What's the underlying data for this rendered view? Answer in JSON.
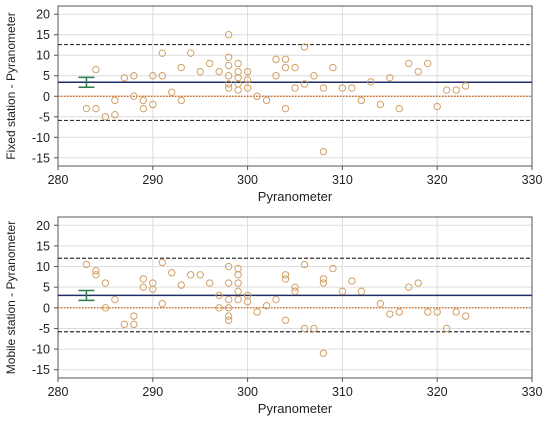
{
  "chart_data": [
    {
      "type": "scatter",
      "xlabel": "Pyranometer",
      "ylabel": "Fixed station - Pyranometer",
      "xlim": [
        280,
        330
      ],
      "ylim": [
        -17,
        22
      ],
      "x_ticks": [
        280,
        290,
        300,
        310,
        320,
        330
      ],
      "y_ticks": [
        -15,
        -10,
        -5,
        0,
        5,
        10,
        15,
        20
      ],
      "grid": true,
      "points": [
        {
          "x": 283,
          "y": -3
        },
        {
          "x": 284,
          "y": -3
        },
        {
          "x": 284,
          "y": 6.5
        },
        {
          "x": 285,
          "y": -5
        },
        {
          "x": 286,
          "y": -4.5
        },
        {
          "x": 286,
          "y": -1
        },
        {
          "x": 287,
          "y": 4.5
        },
        {
          "x": 288,
          "y": 5
        },
        {
          "x": 288,
          "y": 0
        },
        {
          "x": 289,
          "y": -1
        },
        {
          "x": 289,
          "y": -3
        },
        {
          "x": 290,
          "y": -2
        },
        {
          "x": 290,
          "y": 5
        },
        {
          "x": 291,
          "y": 10.5
        },
        {
          "x": 291,
          "y": 5
        },
        {
          "x": 292,
          "y": 1
        },
        {
          "x": 293,
          "y": 7
        },
        {
          "x": 293,
          "y": -1
        },
        {
          "x": 294,
          "y": 10.5
        },
        {
          "x": 295,
          "y": 6
        },
        {
          "x": 296,
          "y": 8
        },
        {
          "x": 297,
          "y": 6
        },
        {
          "x": 298,
          "y": 15
        },
        {
          "x": 298,
          "y": 9.5
        },
        {
          "x": 298,
          "y": 7.5
        },
        {
          "x": 298,
          "y": 5
        },
        {
          "x": 298,
          "y": 3
        },
        {
          "x": 298,
          "y": 2
        },
        {
          "x": 299,
          "y": 8
        },
        {
          "x": 299,
          "y": 6
        },
        {
          "x": 299,
          "y": 4.5
        },
        {
          "x": 299,
          "y": 3
        },
        {
          "x": 299,
          "y": 1.5
        },
        {
          "x": 300,
          "y": 2
        },
        {
          "x": 300,
          "y": 4
        },
        {
          "x": 300,
          "y": 6
        },
        {
          "x": 301,
          "y": 0
        },
        {
          "x": 302,
          "y": -1
        },
        {
          "x": 303,
          "y": 9
        },
        {
          "x": 303,
          "y": 5
        },
        {
          "x": 304,
          "y": 9
        },
        {
          "x": 304,
          "y": 7
        },
        {
          "x": 304,
          "y": -3
        },
        {
          "x": 305,
          "y": 7
        },
        {
          "x": 305,
          "y": 2
        },
        {
          "x": 306,
          "y": 12
        },
        {
          "x": 306,
          "y": 3
        },
        {
          "x": 307,
          "y": 5
        },
        {
          "x": 308,
          "y": 2
        },
        {
          "x": 308,
          "y": -13.5
        },
        {
          "x": 309,
          "y": 7
        },
        {
          "x": 310,
          "y": 2
        },
        {
          "x": 311,
          "y": 2
        },
        {
          "x": 312,
          "y": -1
        },
        {
          "x": 313,
          "y": 3.5
        },
        {
          "x": 314,
          "y": -2
        },
        {
          "x": 315,
          "y": 4.5
        },
        {
          "x": 316,
          "y": -3
        },
        {
          "x": 317,
          "y": 8
        },
        {
          "x": 318,
          "y": 6
        },
        {
          "x": 319,
          "y": 8
        },
        {
          "x": 320,
          "y": -2.5
        },
        {
          "x": 321,
          "y": 1.5
        },
        {
          "x": 322,
          "y": 1.5
        },
        {
          "x": 323,
          "y": 2.5
        }
      ],
      "mean_line": 3.4,
      "upper_limit": 12.6,
      "lower_limit": -5.9,
      "zero_line": 0,
      "mean_ci": [
        2.2,
        4.6
      ],
      "colors": {
        "points": "#d2a064",
        "mean": "#1f2e66",
        "limits": "#333333",
        "zero": "#cc5500",
        "ci_marker": "#2e7d4f",
        "grid": "#dddddd"
      }
    },
    {
      "type": "scatter",
      "xlabel": "Pyranometer",
      "ylabel": "Mobile station - Pyranometer",
      "xlim": [
        280,
        330
      ],
      "ylim": [
        -17,
        22
      ],
      "x_ticks": [
        280,
        290,
        300,
        310,
        320,
        330
      ],
      "y_ticks": [
        -15,
        -10,
        -5,
        0,
        5,
        10,
        15,
        20
      ],
      "grid": true,
      "points": [
        {
          "x": 283,
          "y": 10.5
        },
        {
          "x": 284,
          "y": 9
        },
        {
          "x": 284,
          "y": 8
        },
        {
          "x": 285,
          "y": 6
        },
        {
          "x": 285,
          "y": 0
        },
        {
          "x": 286,
          "y": 2
        },
        {
          "x": 287,
          "y": -4
        },
        {
          "x": 288,
          "y": -4
        },
        {
          "x": 288,
          "y": -2
        },
        {
          "x": 289,
          "y": 5
        },
        {
          "x": 289,
          "y": 7
        },
        {
          "x": 290,
          "y": 4.5
        },
        {
          "x": 290,
          "y": 6
        },
        {
          "x": 291,
          "y": 11
        },
        {
          "x": 291,
          "y": 1
        },
        {
          "x": 292,
          "y": 8.5
        },
        {
          "x": 293,
          "y": 5.5
        },
        {
          "x": 294,
          "y": 8
        },
        {
          "x": 295,
          "y": 8
        },
        {
          "x": 296,
          "y": 6
        },
        {
          "x": 297,
          "y": 3
        },
        {
          "x": 297,
          "y": 0
        },
        {
          "x": 298,
          "y": 10
        },
        {
          "x": 298,
          "y": 6
        },
        {
          "x": 298,
          "y": 2
        },
        {
          "x": 298,
          "y": 0
        },
        {
          "x": 298,
          "y": -2
        },
        {
          "x": 298,
          "y": -3
        },
        {
          "x": 299,
          "y": 9.5
        },
        {
          "x": 299,
          "y": 8
        },
        {
          "x": 299,
          "y": 6
        },
        {
          "x": 299,
          "y": 4
        },
        {
          "x": 299,
          "y": 2
        },
        {
          "x": 300,
          "y": 3
        },
        {
          "x": 300,
          "y": 1.5
        },
        {
          "x": 301,
          "y": -1
        },
        {
          "x": 302,
          "y": 0.5
        },
        {
          "x": 303,
          "y": 2
        },
        {
          "x": 304,
          "y": 8
        },
        {
          "x": 304,
          "y": 7
        },
        {
          "x": 304,
          "y": -3
        },
        {
          "x": 305,
          "y": 5
        },
        {
          "x": 305,
          "y": 4
        },
        {
          "x": 306,
          "y": 10.5
        },
        {
          "x": 306,
          "y": -5
        },
        {
          "x": 307,
          "y": -5
        },
        {
          "x": 308,
          "y": 7
        },
        {
          "x": 308,
          "y": 6
        },
        {
          "x": 308,
          "y": -11
        },
        {
          "x": 309,
          "y": 9.5
        },
        {
          "x": 310,
          "y": 4
        },
        {
          "x": 311,
          "y": 6.5
        },
        {
          "x": 312,
          "y": 4
        },
        {
          "x": 314,
          "y": 1
        },
        {
          "x": 315,
          "y": -1.5
        },
        {
          "x": 316,
          "y": -1
        },
        {
          "x": 317,
          "y": 5
        },
        {
          "x": 318,
          "y": 6
        },
        {
          "x": 319,
          "y": -1
        },
        {
          "x": 320,
          "y": -1
        },
        {
          "x": 321,
          "y": -5
        },
        {
          "x": 322,
          "y": -1
        },
        {
          "x": 323,
          "y": -2
        }
      ],
      "mean_line": 3.0,
      "upper_limit": 12.0,
      "lower_limit": -5.8,
      "zero_line": 0,
      "mean_ci": [
        1.8,
        4.2
      ],
      "colors": {
        "points": "#d2a064",
        "mean": "#1f2e66",
        "limits": "#333333",
        "zero": "#cc5500",
        "ci_marker": "#2e7d4f",
        "grid": "#dddddd"
      }
    }
  ]
}
